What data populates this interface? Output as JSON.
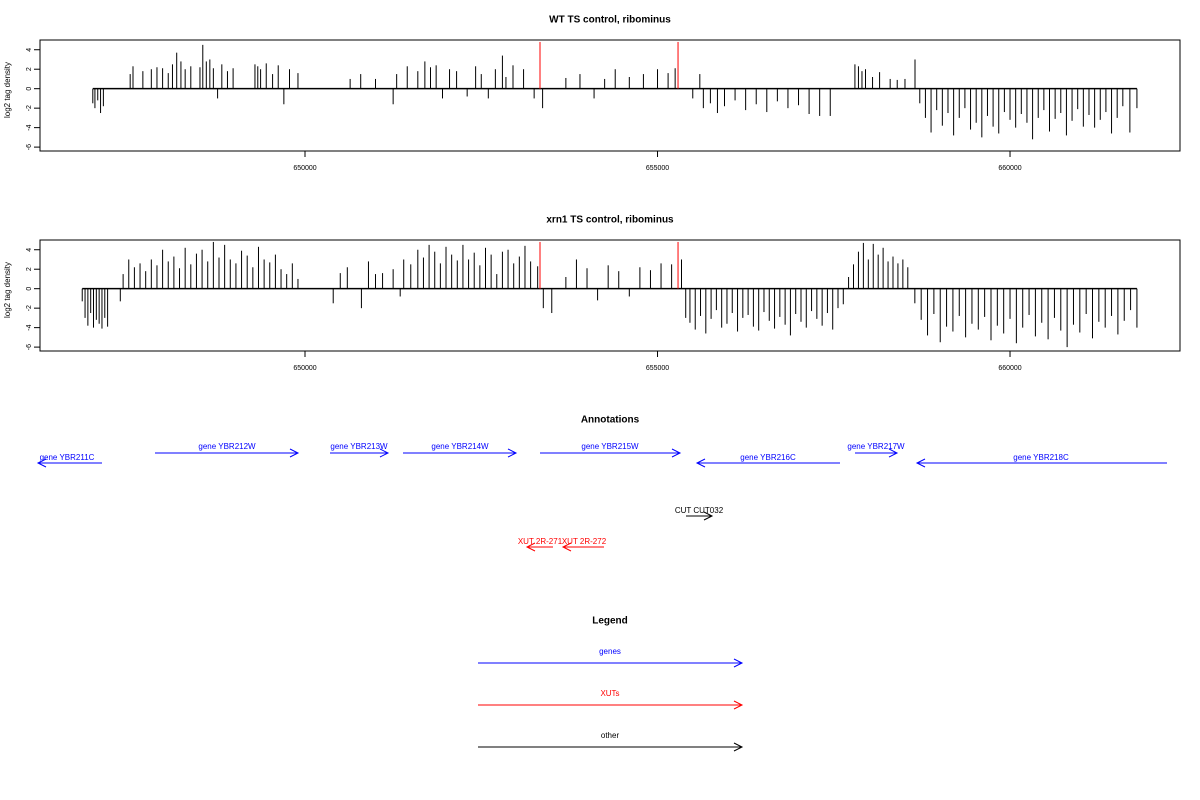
{
  "chart_data": [
    {
      "type": "bar",
      "title": "WT TS control, ribominus",
      "ylabel": "log2 tag density",
      "xlim": [
        646241,
        662411
      ],
      "xticks": [
        650000,
        655000,
        660000
      ],
      "ylim": [
        -6.4,
        5.0
      ],
      "yticks": [
        -6,
        -4,
        -2,
        0,
        2,
        4
      ],
      "series": [
        {
          "color": "#000000",
          "x": [
            646990,
            647020,
            647060,
            647100,
            647140,
            647520,
            647560,
            647700,
            647820,
            647900,
            647980,
            648060,
            648120,
            648180,
            648240,
            648300,
            648380,
            648510,
            648550,
            648600,
            648650,
            648700,
            648760,
            648820,
            648900,
            648980,
            649290,
            649330,
            649370,
            649450,
            649540,
            649620,
            649700,
            649780,
            649900,
            650640,
            650790,
            651000,
            651250,
            651300,
            651450,
            651600,
            651700,
            651780,
            651860,
            651950,
            652050,
            652150,
            652300,
            652420,
            652500,
            652600,
            652700,
            652800,
            652850,
            652950,
            653100,
            653250,
            653370,
            653700,
            653900,
            654100,
            654250,
            654400,
            654600,
            654800,
            655000,
            655150,
            655250,
            655500,
            655600,
            655650,
            655750,
            655850,
            655950,
            656100,
            656250,
            656400,
            656550,
            656700,
            656850,
            657000,
            657150,
            657300,
            657450,
            657800,
            657850,
            657900,
            657950,
            658050,
            658150,
            658300,
            658400,
            658510,
            658652,
            658720,
            658800,
            658880,
            658960,
            659040,
            659120,
            659200,
            659280,
            659360,
            659440,
            659520,
            659600,
            659680,
            659760,
            659840,
            659920,
            660000,
            660080,
            660160,
            660240,
            660320,
            660400,
            660480,
            660560,
            660640,
            660720,
            660800,
            660880,
            660960,
            661040,
            661120,
            661200,
            661280,
            661360,
            661440,
            661520,
            661600,
            661700,
            661800
          ],
          "values": [
            -1.5,
            -2.0,
            -1.2,
            -2.5,
            -1.8,
            1.5,
            2.3,
            1.8,
            2.0,
            2.2,
            2.1,
            1.6,
            2.5,
            3.7,
            2.8,
            2.0,
            2.3,
            2.2,
            4.5,
            2.8,
            3.0,
            2.1,
            -1.0,
            2.5,
            1.8,
            2.1,
            2.5,
            2.3,
            2.0,
            2.6,
            1.5,
            2.4,
            -1.6,
            2.0,
            1.6,
            1.0,
            1.5,
            1.0,
            -1.6,
            1.5,
            2.3,
            1.8,
            2.8,
            2.2,
            2.4,
            -1.0,
            2.0,
            1.8,
            -0.8,
            2.3,
            1.5,
            -1.0,
            2.0,
            3.4,
            1.2,
            2.4,
            2.0,
            -1.0,
            -2.0,
            1.1,
            1.5,
            -1.0,
            1.0,
            2.0,
            1.2,
            1.5,
            2.0,
            1.6,
            2.1,
            -1.0,
            1.5,
            -2.0,
            -1.5,
            -2.5,
            -1.8,
            -1.2,
            -2.2,
            -1.6,
            -2.4,
            -1.3,
            -2.0,
            -1.7,
            -2.6,
            -2.8,
            -2.8,
            2.5,
            2.3,
            1.8,
            2.0,
            1.2,
            1.7,
            1.0,
            0.9,
            1.0,
            3.0,
            -1.5,
            -3.0,
            -4.5,
            -2.2,
            -3.8,
            -2.5,
            -4.8,
            -3.0,
            -2.0,
            -4.2,
            -3.5,
            -5.0,
            -2.8,
            -3.9,
            -4.6,
            -2.4,
            -3.2,
            -4.0,
            -2.6,
            -3.5,
            -5.2,
            -3.0,
            -2.2,
            -4.4,
            -3.1,
            -2.5,
            -4.8,
            -3.3,
            -2.1,
            -3.9,
            -2.7,
            -4.0,
            -3.2,
            -2.4,
            -4.6,
            -3.0,
            -1.8,
            -4.5,
            -2.0
          ]
        },
        {
          "color": "#ff0000",
          "x": [
            653333,
            655291
          ],
          "values": [
            4.8,
            4.8
          ]
        }
      ]
    },
    {
      "type": "bar",
      "title": "xrn1 TS control, ribominus",
      "ylabel": "log2 tag density",
      "xlim": [
        646241,
        662411
      ],
      "xticks": [
        650000,
        655000,
        660000
      ],
      "ylim": [
        -6.4,
        5.0
      ],
      "yticks": [
        -6,
        -4,
        -2,
        0,
        2,
        4
      ],
      "series": [
        {
          "color": "#000000",
          "x": [
            646840,
            646880,
            646920,
            646960,
            647000,
            647040,
            647080,
            647120,
            647160,
            647200,
            647380,
            647420,
            647500,
            647580,
            647660,
            647740,
            647820,
            647900,
            647980,
            648060,
            648140,
            648220,
            648300,
            648380,
            648460,
            648540,
            648620,
            648700,
            648780,
            648860,
            648940,
            649020,
            649100,
            649180,
            649260,
            649340,
            649420,
            649500,
            649580,
            649660,
            649740,
            649820,
            649900,
            650400,
            650500,
            650600,
            650800,
            650900,
            651000,
            651100,
            651250,
            651350,
            651400,
            651500,
            651600,
            651680,
            651760,
            651840,
            651920,
            652000,
            652080,
            652160,
            652240,
            652320,
            652400,
            652480,
            652560,
            652640,
            652720,
            652800,
            652880,
            652960,
            653040,
            653120,
            653200,
            653300,
            653380,
            653500,
            653700,
            653850,
            654000,
            654150,
            654300,
            654450,
            654600,
            654750,
            654900,
            655050,
            655200,
            655340,
            655400,
            655460,
            655535,
            655610,
            655685,
            655760,
            655835,
            655910,
            655985,
            656060,
            656135,
            656210,
            656285,
            656360,
            656435,
            656510,
            656585,
            656660,
            656735,
            656810,
            656885,
            656960,
            657035,
            657110,
            657185,
            657260,
            657335,
            657410,
            657485,
            657560,
            657635,
            657710,
            657780,
            657850,
            657920,
            657990,
            658060,
            658130,
            658200,
            658270,
            658340,
            658410,
            658480,
            658550,
            658650,
            658740,
            658830,
            658920,
            659010,
            659100,
            659190,
            659280,
            659370,
            659460,
            659550,
            659640,
            659730,
            659820,
            659910,
            660000,
            660090,
            660180,
            660270,
            660360,
            660450,
            660540,
            660630,
            660720,
            660810,
            660900,
            660990,
            661080,
            661170,
            661260,
            661350,
            661440,
            661530,
            661620,
            661710,
            661800
          ],
          "values": [
            -1.3,
            -3.0,
            -3.8,
            -2.5,
            -4.0,
            -3.2,
            -3.6,
            -4.1,
            -3.0,
            -3.9,
            -1.3,
            1.5,
            3.0,
            2.2,
            2.6,
            1.8,
            3.0,
            2.4,
            4.0,
            2.8,
            3.3,
            2.1,
            4.2,
            2.5,
            3.6,
            4.0,
            2.8,
            4.8,
            3.2,
            4.5,
            3.0,
            2.6,
            3.9,
            3.4,
            2.2,
            4.3,
            3.0,
            2.7,
            3.5,
            2.0,
            1.5,
            2.6,
            1.0,
            -1.5,
            1.6,
            2.2,
            -2.0,
            2.8,
            1.5,
            1.6,
            2.0,
            -0.8,
            3.0,
            2.5,
            4.0,
            3.2,
            4.5,
            3.8,
            2.6,
            4.3,
            3.5,
            2.9,
            4.5,
            3.0,
            3.7,
            2.4,
            4.2,
            3.5,
            1.5,
            3.8,
            4.0,
            2.6,
            3.3,
            4.4,
            2.8,
            2.3,
            -2.0,
            -2.5,
            1.2,
            3.0,
            2.1,
            -1.2,
            2.4,
            1.8,
            -0.8,
            2.2,
            1.9,
            2.6,
            2.5,
            3.0,
            -3.0,
            -3.5,
            -4.2,
            -2.8,
            -4.6,
            -3.1,
            -2.2,
            -4.0,
            -3.6,
            -2.5,
            -4.4,
            -3.0,
            -2.7,
            -3.9,
            -4.3,
            -2.4,
            -3.3,
            -4.1,
            -2.9,
            -3.7,
            -4.8,
            -2.6,
            -3.4,
            -4.0,
            -2.3,
            -3.1,
            -3.8,
            -2.5,
            -4.2,
            -2.0,
            -1.6,
            1.2,
            2.5,
            3.8,
            4.7,
            3.0,
            4.6,
            3.5,
            4.2,
            2.8,
            3.3,
            2.6,
            3.0,
            2.2,
            -1.5,
            -3.2,
            -4.8,
            -2.6,
            -5.5,
            -3.9,
            -4.4,
            -2.8,
            -5.0,
            -3.6,
            -4.2,
            -2.9,
            -5.3,
            -3.8,
            -4.6,
            -3.1,
            -5.6,
            -4.0,
            -2.7,
            -4.9,
            -3.5,
            -5.2,
            -3.0,
            -4.3,
            -6.0,
            -3.7,
            -4.5,
            -2.6,
            -5.1,
            -3.4,
            -4.0,
            -2.8,
            -4.7,
            -3.3,
            -2.2,
            -4.0
          ]
        },
        {
          "color": "#ff0000",
          "x": [
            653333,
            655291
          ],
          "values": [
            4.8,
            4.8
          ]
        }
      ]
    }
  ],
  "annotations": {
    "title": "Annotations",
    "items": [
      {
        "label": "gene YBR211C",
        "color": "#0000ff"
      },
      {
        "label": "gene YBR212W",
        "color": "#0000ff"
      },
      {
        "label": "gene YBR213W",
        "color": "#0000ff"
      },
      {
        "label": "gene YBR214W",
        "color": "#0000ff"
      },
      {
        "label": "gene YBR215W",
        "color": "#0000ff"
      },
      {
        "label": "gene YBR216C",
        "color": "#0000ff"
      },
      {
        "label": "gene YBR217W",
        "color": "#0000ff"
      },
      {
        "label": "gene YBR218C",
        "color": "#0000ff"
      },
      {
        "label": "CUT CUT032",
        "color": "#000000"
      },
      {
        "label": "XUT 2R-271",
        "color": "#ff0000"
      },
      {
        "label": "XUT 2R-272",
        "color": "#ff0000"
      }
    ]
  },
  "legend": {
    "title": "Legend",
    "items": [
      {
        "label": "genes",
        "color": "#0000ff"
      },
      {
        "label": "XUTs",
        "color": "#ff0000"
      },
      {
        "label": "other",
        "color": "#000000"
      }
    ]
  }
}
